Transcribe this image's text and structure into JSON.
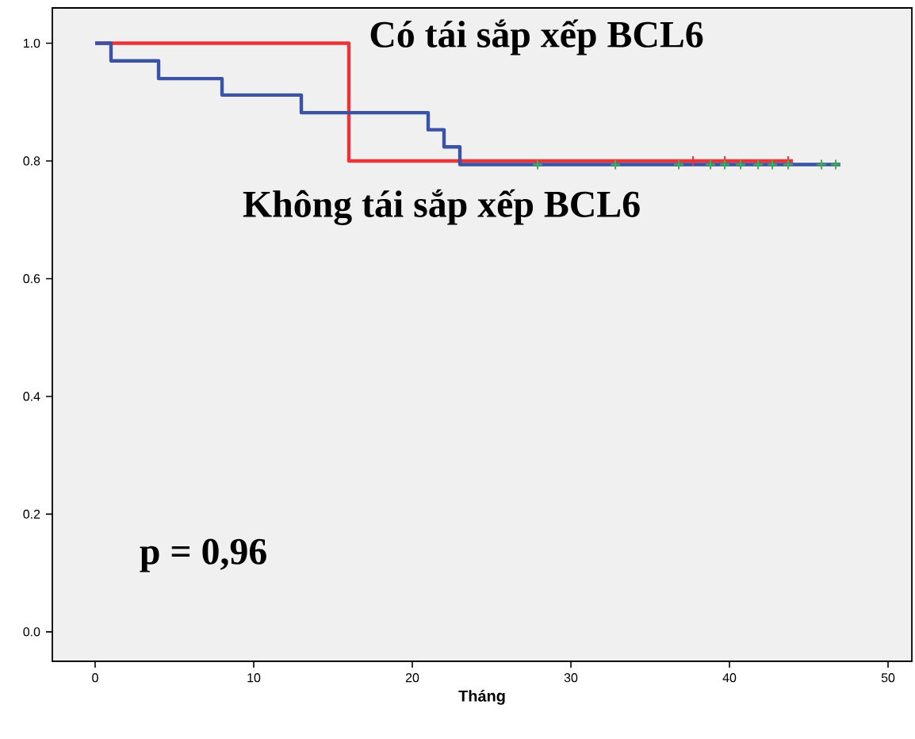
{
  "chart_data": {
    "type": "step",
    "xlabel": "Tháng",
    "series": [
      {
        "name": "Có tái sắp xếp BCL6",
        "color": "#ee3338",
        "x": [
          0,
          16,
          16,
          44
        ],
        "values": [
          1.0,
          1.0,
          0.8,
          0.8
        ]
      },
      {
        "name": "Không tái sắp xếp BCL6",
        "color": "#3a53a4",
        "x": [
          0,
          1,
          4,
          8,
          13,
          21,
          22,
          23,
          47
        ],
        "values": [
          1.0,
          0.97,
          0.94,
          0.912,
          0.882,
          0.853,
          0.824,
          0.794,
          0.794
        ]
      },
      {
        "type": "scatter",
        "color": "#ee3338",
        "marker": "cross",
        "x": [
          37.7,
          39.7,
          43.7
        ],
        "values": [
          0.8,
          0.8,
          0.8
        ]
      },
      {
        "type": "scatter",
        "color": "#3cb44b",
        "marker": "cross",
        "x": [
          27.9,
          32.8,
          36.8,
          38.8,
          39.7,
          40.7,
          41.8,
          42.7,
          43.7,
          45.8,
          46.7
        ],
        "values": [
          0.794,
          0.794,
          0.794,
          0.794,
          0.794,
          0.794,
          0.794,
          0.794,
          0.794,
          0.794,
          0.794
        ]
      }
    ],
    "annotations": [
      "p = 0,96"
    ],
    "xlim": [
      -2.7,
      51.5
    ],
    "ylim": [
      -0.05,
      1.06
    ],
    "xticks": [
      0,
      10,
      20,
      30,
      40,
      50
    ],
    "yticks": [
      {
        "value": 0,
        "label": "0.0"
      },
      {
        "value": 0.2,
        "label": "0.2"
      },
      {
        "value": 0.4,
        "label": "0.4"
      },
      {
        "value": 0.6,
        "label": "0.6"
      },
      {
        "value": 0.8,
        "label": "0.8"
      },
      {
        "value": 1,
        "label": "1.0"
      }
    ],
    "legend": false,
    "grid": false
  }
}
